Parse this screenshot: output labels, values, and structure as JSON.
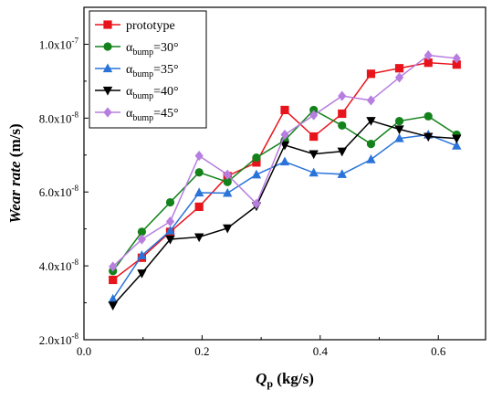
{
  "chart_data": {
    "type": "line",
    "xlabel_main": "Q",
    "xlabel_sub": "p",
    "xlabel_unit": " (kg/s)",
    "ylabel_main": "Wear rate",
    "ylabel_unit": " (m/s)",
    "xlim": [
      0.0,
      0.68
    ],
    "ylim": [
      2e-08,
      1.1e-07
    ],
    "xticks": [
      {
        "value": 0.0,
        "label": "0.0"
      },
      {
        "value": 0.2,
        "label": "0.2"
      },
      {
        "value": 0.4,
        "label": "0.4"
      },
      {
        "value": 0.6,
        "label": "0.6"
      }
    ],
    "yticks": [
      {
        "value": 2e-08,
        "mant": "2.0x10",
        "exp": "-8"
      },
      {
        "value": 4e-08,
        "mant": "4.0x10",
        "exp": "-8"
      },
      {
        "value": 6e-08,
        "mant": "6.0x10",
        "exp": "-8"
      },
      {
        "value": 8e-08,
        "mant": "8.0x10",
        "exp": "-8"
      },
      {
        "value": 1e-07,
        "mant": "1.0x10",
        "exp": "-7"
      }
    ],
    "legend_position": "top-left",
    "x": [
      0.049,
      0.098,
      0.146,
      0.195,
      0.243,
      0.292,
      0.34,
      0.389,
      0.437,
      0.486,
      0.534,
      0.583,
      0.631
    ],
    "series": [
      {
        "label": "prototype",
        "sub": "",
        "suffix": "",
        "color": "#e8141c",
        "marker": "square",
        "values": [
          3.62e-08,
          4.22e-08,
          4.92e-08,
          5.6e-08,
          6.43e-08,
          6.8e-08,
          8.22e-08,
          7.5e-08,
          8.12e-08,
          9.2e-08,
          9.35e-08,
          9.5e-08,
          9.45e-08
        ]
      },
      {
        "label": "α",
        "sub": "bump",
        "suffix": "=30°",
        "color": "#13821b",
        "marker": "circle",
        "values": [
          3.86e-08,
          4.92e-08,
          5.72e-08,
          6.53e-08,
          6.27e-08,
          6.93e-08,
          7.4e-08,
          8.22e-08,
          7.8e-08,
          7.3e-08,
          7.92e-08,
          8.05e-08,
          7.55e-08
        ]
      },
      {
        "label": "α",
        "sub": "bump",
        "suffix": "=35°",
        "color": "#2a74d9",
        "marker": "triangle-up",
        "values": [
          3.1e-08,
          4.28e-08,
          4.95e-08,
          5.98e-08,
          5.97e-08,
          6.47e-08,
          6.82e-08,
          6.52e-08,
          6.48e-08,
          6.88e-08,
          7.45e-08,
          7.55e-08,
          7.25e-08
        ]
      },
      {
        "label": "α",
        "sub": "bump",
        "suffix": "=40°",
        "color": "#000000",
        "marker": "triangle-down",
        "values": [
          2.93e-08,
          3.8e-08,
          4.72e-08,
          4.78e-08,
          5.02e-08,
          5.62e-08,
          7.27e-08,
          7.03e-08,
          7.1e-08,
          7.93e-08,
          7.7e-08,
          7.5e-08,
          7.45e-08
        ]
      },
      {
        "label": "α",
        "sub": "bump",
        "suffix": "=45°",
        "color": "#b77ee0",
        "marker": "diamond",
        "values": [
          3.98e-08,
          4.72e-08,
          5.2e-08,
          6.98e-08,
          6.47e-08,
          5.68e-08,
          7.55e-08,
          8.08e-08,
          8.6e-08,
          8.48e-08,
          9.1e-08,
          9.7e-08,
          9.62e-08
        ]
      }
    ]
  }
}
